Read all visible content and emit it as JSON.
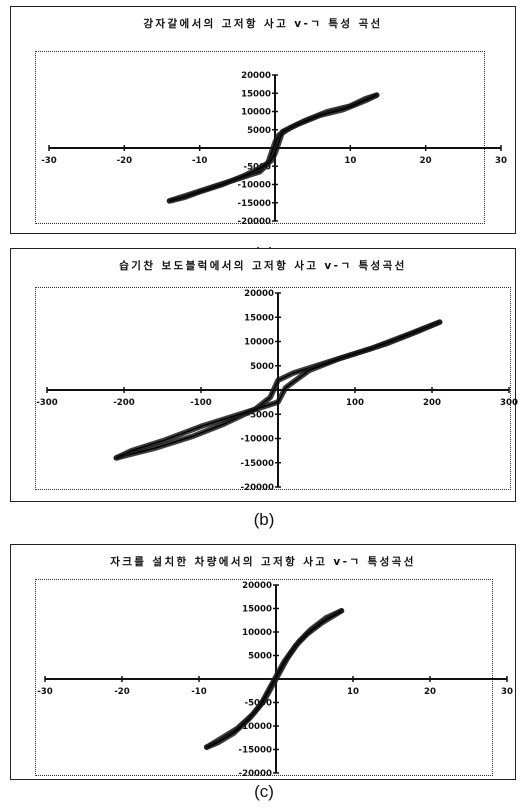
{
  "chart_data": [
    {
      "type": "line",
      "title": "강자갈에서의 고저항 사고 v-ㄱ 특성 곡선",
      "caption": "(a)",
      "xlim": [
        -30,
        30
      ],
      "ylim": [
        -20000,
        20000
      ],
      "x_ticks": [
        -30,
        -20,
        -10,
        0,
        10,
        20,
        30
      ],
      "x_tick_labels": [
        "-30",
        "-20",
        "-10",
        "",
        "10",
        "20",
        "30"
      ],
      "y_ticks": [
        -20000,
        -15000,
        -10000,
        -5000,
        0,
        5000,
        10000,
        15000,
        20000
      ],
      "y_tick_labels": [
        "-20000",
        "-15000",
        "-10000",
        "-5000",
        "",
        "5000",
        "10000",
        "15000",
        "20000"
      ],
      "grid": false,
      "series": [
        {
          "values": [
            [
              -14,
              -14500
            ],
            [
              -11,
              -12500
            ],
            [
              -8,
              -10500
            ],
            [
              -5,
              -8500
            ],
            [
              -2,
              -6500
            ],
            [
              -1,
              -4500
            ],
            [
              -0.5,
              -1500
            ],
            [
              0,
              1500
            ],
            [
              0.5,
              3500
            ],
            [
              2,
              5500
            ],
            [
              4,
              7500
            ],
            [
              7,
              10000
            ],
            [
              10,
              11500
            ],
            [
              12,
              13500
            ],
            [
              13.5,
              14500
            ]
          ]
        },
        {
          "values": [
            [
              13.5,
              14500
            ],
            [
              12,
              13000
            ],
            [
              9,
              10500
            ],
            [
              6,
              9000
            ],
            [
              3,
              6500
            ],
            [
              1,
              4500
            ],
            [
              0.5,
              1500
            ],
            [
              0,
              -1500
            ],
            [
              -0.5,
              -3500
            ],
            [
              -2,
              -5500
            ],
            [
              -4,
              -7500
            ],
            [
              -7,
              -10000
            ],
            [
              -10,
              -12000
            ],
            [
              -12,
              -13500
            ],
            [
              -14,
              -14500
            ]
          ]
        }
      ]
    },
    {
      "type": "line",
      "title": "습기찬 보도블럭에서의 고저항 사고 v-ㄱ 특성곡선",
      "caption": "(b)",
      "xlim": [
        -300,
        300
      ],
      "ylim": [
        -20000,
        20000
      ],
      "x_ticks": [
        -300,
        -200,
        -100,
        0,
        100,
        200,
        300
      ],
      "x_tick_labels": [
        "-300",
        "-200",
        "-100",
        "",
        "100",
        "200",
        "300"
      ],
      "y_ticks": [
        -20000,
        -15000,
        -10000,
        -5000,
        0,
        5000,
        10000,
        15000,
        20000
      ],
      "y_tick_labels": [
        "-20000",
        "-15000",
        "-10000",
        "-5000",
        "",
        "5000",
        "10000",
        "15000",
        "20000"
      ],
      "grid": false,
      "series": [
        {
          "values": [
            [
              -210,
              -14000
            ],
            [
              -160,
              -12000
            ],
            [
              -110,
              -9500
            ],
            [
              -70,
              -7000
            ],
            [
              -30,
              -4000
            ],
            [
              -10,
              -1500
            ],
            [
              0,
              2000
            ],
            [
              20,
              3500
            ],
            [
              60,
              5500
            ],
            [
              100,
              7500
            ],
            [
              140,
              9500
            ],
            [
              180,
              12000
            ],
            [
              210,
              14000
            ]
          ]
        },
        {
          "values": [
            [
              210,
              14000
            ],
            [
              170,
              11500
            ],
            [
              120,
              8500
            ],
            [
              80,
              6500
            ],
            [
              40,
              4000
            ],
            [
              10,
              500
            ],
            [
              0,
              -2500
            ],
            [
              -20,
              -3500
            ],
            [
              -60,
              -5500
            ],
            [
              -100,
              -7500
            ],
            [
              -150,
              -10500
            ],
            [
              -190,
              -12500
            ],
            [
              -210,
              -14000
            ]
          ]
        }
      ]
    },
    {
      "type": "line",
      "title": "자크를 설치한 차량에서의 고저항 사고 v-ㄱ 특성곡선",
      "caption": "(c)",
      "xlim": [
        -30,
        30
      ],
      "ylim": [
        -20000,
        20000
      ],
      "x_ticks": [
        -30,
        -20,
        -10,
        0,
        10,
        20,
        30
      ],
      "x_tick_labels": [
        "-30",
        "-20",
        "-10",
        "",
        "10",
        "20",
        "30"
      ],
      "y_ticks": [
        -20000,
        -15000,
        -10000,
        -5000,
        0,
        5000,
        10000,
        15000,
        20000
      ],
      "y_tick_labels": [
        "-20000",
        "-15000",
        "-10000",
        "-5000",
        "",
        "5000",
        "10000",
        "15000",
        "20000"
      ],
      "grid": false,
      "series": [
        {
          "values": [
            [
              -9,
              -14500
            ],
            [
              -7,
              -12500
            ],
            [
              -5,
              -10500
            ],
            [
              -3,
              -7500
            ],
            [
              -1.5,
              -4500
            ],
            [
              0,
              0
            ],
            [
              1.5,
              4500
            ],
            [
              3,
              8000
            ],
            [
              4.5,
              10500
            ],
            [
              6.5,
              13000
            ],
            [
              8.5,
              14500
            ]
          ]
        },
        {
          "values": [
            [
              8.5,
              14500
            ],
            [
              6,
              12000
            ],
            [
              4,
              9500
            ],
            [
              2.5,
              7000
            ],
            [
              1,
              3500
            ],
            [
              -0.5,
              -1000
            ],
            [
              -2,
              -5500
            ],
            [
              -3.5,
              -8500
            ],
            [
              -5.5,
              -11500
            ],
            [
              -7.5,
              -13500
            ],
            [
              -9,
              -14500
            ]
          ]
        }
      ]
    }
  ]
}
